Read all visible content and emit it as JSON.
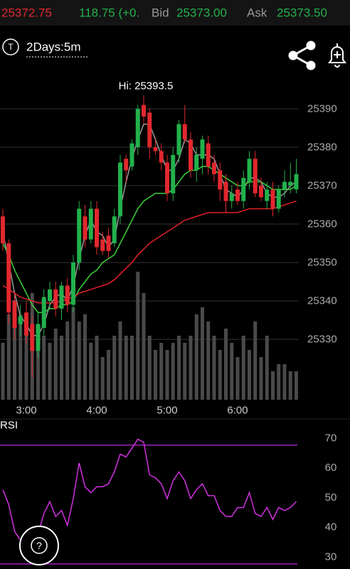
{
  "header": {
    "last": "25372.75",
    "change": "118.75 (+0.",
    "bid_label": "Bid",
    "bid": "25373.00",
    "ask_label": "Ask",
    "ask": "25373.50"
  },
  "toolbar": {
    "icon": "T",
    "timeframe": "2Days:5m"
  },
  "help_button": "?",
  "chart_data": [
    {
      "type": "candlestick",
      "annotation": "Hi: 25393.5",
      "categories": [
        null,
        null,
        null,
        null,
        "3:00",
        null,
        null,
        null,
        null,
        null,
        null,
        null,
        null,
        null,
        null,
        null,
        "4:00",
        null,
        null,
        null,
        null,
        null,
        null,
        null,
        null,
        null,
        null,
        null,
        "5:00",
        null,
        null,
        null,
        null,
        null,
        null,
        null,
        null,
        null,
        null,
        null,
        "6:00",
        null,
        null,
        null,
        null,
        null,
        null,
        null,
        null,
        null,
        null
      ],
      "open": [
        25362,
        25355,
        25340,
        25334,
        25337,
        25334,
        25327,
        25333,
        25340,
        25343,
        25338,
        25344,
        25339,
        25350,
        25362,
        25356,
        25364,
        25356,
        25357,
        25355,
        25362,
        25377,
        25375,
        25380,
        25391,
        25389,
        25380,
        25379,
        25376,
        25368,
        25378,
        25386,
        25382,
        25374,
        25377,
        25381,
        25376,
        25374,
        25371,
        25366,
        25369,
        25366,
        25371,
        25377,
        25370,
        25366,
        25369,
        25364,
        25369,
        25370,
        25369
      ],
      "high": [
        25364,
        25356,
        25342,
        25339,
        25340,
        25336,
        25337,
        25343,
        25345,
        25345,
        25345,
        25346,
        25352,
        25366,
        25365,
        25366,
        25366,
        25358,
        25359,
        25364,
        25378,
        25378,
        25382,
        25391,
        25393.5,
        25390,
        25382,
        25381,
        25378,
        25380,
        25387,
        25391,
        25384,
        25380,
        25383,
        25383,
        25378,
        25376,
        25373,
        25370,
        25371,
        25374,
        25379,
        25379,
        25372,
        25371,
        25371,
        25370,
        25374,
        25376,
        25377
      ],
      "low": [
        25353,
        25334,
        25330,
        25331,
        25329,
        25320,
        25325,
        25331,
        25338,
        25336,
        25335,
        25337,
        25337,
        25348,
        25354,
        25355,
        25352,
        25352,
        25351,
        25354,
        25360,
        25371,
        25374,
        25378,
        25386,
        25377,
        25378,
        25374,
        25366,
        25366,
        25376,
        25381,
        25372,
        25371,
        25373,
        25373,
        25371,
        25366,
        25363,
        25364,
        25365,
        25364,
        25369,
        25367,
        25366,
        25364,
        25362,
        25363,
        25367,
        25368,
        25368
      ],
      "close": [
        25355,
        25337,
        25333,
        25336,
        25331,
        25327,
        25334,
        25341,
        25343,
        25338,
        25344,
        25339,
        25350,
        25364,
        25356,
        25364,
        25354,
        25353,
        25353,
        25362,
        25376,
        25374,
        25381,
        25390,
        25388,
        25380,
        25379,
        25376,
        25368,
        25378,
        25386,
        25382,
        25374,
        25378,
        25382,
        25375,
        25373,
        25369,
        25366,
        25368,
        25366,
        25372,
        25377,
        25368,
        25367,
        25369,
        25364,
        25369,
        25371,
        25371,
        25373
      ],
      "up_color": "#22b14c",
      "down_color": "#e0282e",
      "series": [
        {
          "color": "#9a9a9a",
          "values": [
            25358,
            25350,
            25342,
            25336,
            25334,
            25331,
            25331,
            25334,
            25339,
            25341,
            25342,
            25340,
            25344,
            25351,
            25357,
            25361,
            25358,
            25357,
            25354,
            25356,
            25364,
            25371,
            25377,
            25382,
            25386,
            25386,
            25382,
            25378,
            25374,
            25374,
            25377,
            25382,
            25381,
            25378,
            25378,
            25378,
            25377,
            25373,
            25369,
            25368,
            25367,
            25369,
            25372,
            25372,
            25371,
            25368,
            25367,
            25367,
            25368,
            25370,
            25371
          ]
        },
        {
          "color": "#3cd23c",
          "values": [
            25355,
            25352,
            25348,
            25345,
            25342,
            25339,
            25337,
            25337,
            25338,
            25338,
            25339,
            25339,
            25340,
            25343,
            25345,
            25347,
            25348,
            25350,
            25351,
            25352,
            25355,
            25358,
            25361,
            25364,
            25366,
            25367,
            25368,
            25368,
            25368,
            25369,
            25371,
            25373,
            25374,
            25374,
            25375,
            25375,
            25374,
            25373,
            25372,
            25371,
            25370,
            25370,
            25371,
            25371,
            25371,
            25370,
            25369,
            25369,
            25369,
            25369,
            25370
          ]
        },
        {
          "color": "#e0202a",
          "values": [
            25344,
            25343,
            25342,
            25341,
            25340.5,
            25340,
            25339.5,
            25339.5,
            25339.5,
            25339.5,
            25340,
            25340.5,
            25341,
            25342,
            25342.5,
            25343,
            25343.5,
            25344,
            25344.5,
            25345.5,
            25347,
            25348.5,
            25350,
            25352,
            25353.5,
            25355,
            25356,
            25357,
            25358,
            25359,
            25360,
            25361,
            25361.5,
            25362,
            25362.5,
            25363,
            25363,
            25363,
            25363,
            25363,
            25363,
            25363.5,
            25364,
            25364,
            25364,
            25364,
            25364,
            25364.5,
            25365,
            25365.5,
            25366
          ]
        }
      ],
      "volume": {
        "color": "#4a4a4a",
        "ylim": [
          0,
          100
        ],
        "values": [
          40,
          60,
          70,
          60,
          55,
          75,
          45,
          45,
          40,
          50,
          45,
          55,
          65,
          55,
          60,
          40,
          45,
          30,
          35,
          45,
          55,
          45,
          45,
          90,
          75,
          45,
          35,
          40,
          35,
          40,
          45,
          40,
          45,
          60,
          65,
          55,
          45,
          35,
          50,
          40,
          30,
          45,
          35,
          55,
          30,
          45,
          20,
          25,
          25,
          20,
          20
        ]
      },
      "ylim": [
        25314.3,
        25399.8
      ],
      "yticks": [
        25330,
        25340,
        25350,
        25360,
        25370,
        25380,
        25390
      ],
      "grid": true
    },
    {
      "type": "line",
      "title": "RSI",
      "series": [
        {
          "color": "#d030e0",
          "values": [
            55,
            50,
            41,
            38,
            39,
            37,
            40,
            47,
            51,
            46,
            48,
            43,
            52,
            64,
            56,
            54,
            56,
            56,
            57,
            61,
            67,
            66,
            69,
            72,
            71,
            60,
            59,
            57,
            52,
            58,
            61,
            58,
            52,
            55,
            57,
            53,
            53,
            48,
            46,
            46,
            49,
            49,
            54,
            47,
            46,
            49,
            45,
            49,
            48,
            49,
            51
          ]
        }
      ],
      "ylim": [
        28.3,
        76.2
      ],
      "yticks": [
        30,
        40,
        50,
        60,
        70
      ],
      "hlines": [
        30,
        70
      ],
      "hline_color": "#a020c0"
    }
  ]
}
